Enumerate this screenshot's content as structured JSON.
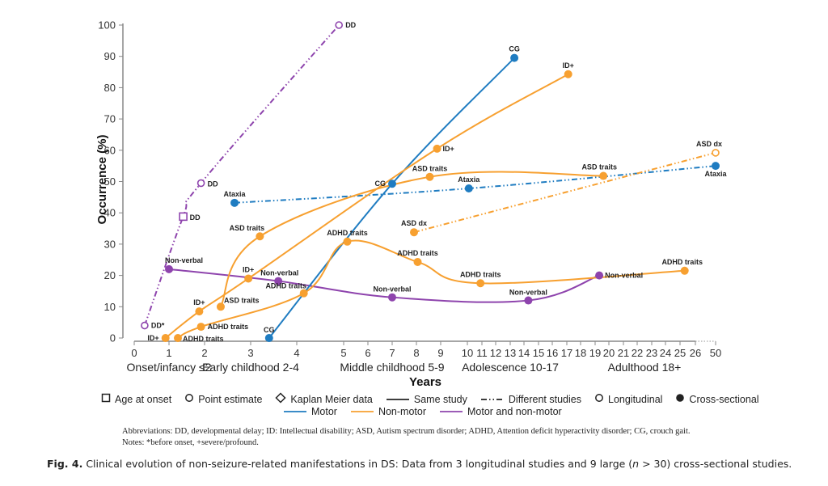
{
  "chart_data": {
    "type": "line",
    "title": "",
    "xlabel": "Years",
    "ylabel": "Occurrence (%)",
    "ylim": [
      0,
      100
    ],
    "y_ticks": [
      0,
      10,
      20,
      30,
      40,
      50,
      60,
      70,
      80,
      90,
      100
    ],
    "x_ticks": [
      0,
      1,
      2,
      3,
      4,
      5,
      6,
      7,
      8,
      9,
      10,
      11,
      12,
      13,
      14,
      15,
      16,
      17,
      18,
      19,
      20,
      21,
      22,
      23,
      24,
      25,
      26,
      50
    ],
    "x_scale": "piecewise (compressed after 10, break 26 to 50)",
    "periods": [
      {
        "label": "Onset/infancy ≤2",
        "center": 1
      },
      {
        "label": "Early childhood 2-4",
        "center": 3
      },
      {
        "label": "Middle childhood 5-9",
        "center": 7
      },
      {
        "label": "Adolescence 10-17",
        "center": 13
      },
      {
        "label": "Adulthood 18+",
        "center": 22.5
      }
    ],
    "grid": false,
    "legend_position": "bottom",
    "series": [
      {
        "name": "DD",
        "category": "Motor and non-motor",
        "color": "#8e44ad",
        "style": "different-studies",
        "study": "longitudinal",
        "points": [
          {
            "x": 0.3,
            "y": 4,
            "label": "DD*",
            "marker": "circle-open"
          },
          {
            "x": 1.4,
            "y": 38.8,
            "label": "DD",
            "marker": "square-open"
          },
          {
            "x": 1.9,
            "y": 49.5,
            "label": "DD",
            "marker": "circle-open"
          },
          {
            "x": 4.9,
            "y": 100,
            "label": "DD",
            "marker": "circle-open"
          }
        ]
      },
      {
        "name": "Non-verbal",
        "category": "Motor and non-motor",
        "color": "#8e44ad",
        "style": "same-study",
        "study": "cross-sectional",
        "points": [
          {
            "x": 1.0,
            "y": 22,
            "label": "Non-verbal",
            "marker": "circle-filled"
          },
          {
            "x": 3.6,
            "y": 18.2,
            "label": "Non-verbal",
            "marker": "circle-filled"
          },
          {
            "x": 7.0,
            "y": 13,
            "label": "Non-verbal",
            "marker": "circle-filled"
          },
          {
            "x": 14.3,
            "y": 12,
            "label": "Non-verbal",
            "marker": "circle-filled"
          },
          {
            "x": 19.3,
            "y": 20,
            "label": "Non-verbal",
            "marker": "circle-filled"
          }
        ]
      },
      {
        "name": "Ataxia",
        "category": "Motor",
        "color": "#1f7cc1",
        "style": "different-studies",
        "study": "cross-sectional",
        "points": [
          {
            "x": 2.65,
            "y": 43.2,
            "label": "Ataxia",
            "marker": "circle-filled"
          },
          {
            "x": 10.1,
            "y": 47.8,
            "label": "Ataxia",
            "marker": "circle-filled"
          },
          {
            "x": 50,
            "y": 55,
            "label": "Ataxia",
            "marker": "circle-filled"
          }
        ]
      },
      {
        "name": "CG",
        "category": "Motor",
        "color": "#1f7cc1",
        "style": "same-study",
        "study": "cross-sectional",
        "points": [
          {
            "x": 3.4,
            "y": 0,
            "label": "CG",
            "marker": "circle-filled"
          },
          {
            "x": 7.0,
            "y": 49.3,
            "label": "CG",
            "marker": "circle-filled"
          },
          {
            "x": 13.3,
            "y": 89.5,
            "label": "CG",
            "marker": "circle-filled"
          }
        ]
      },
      {
        "name": "ID+",
        "category": "Non-motor",
        "color": "#f7a030",
        "style": "same-study",
        "study": "cross-sectional",
        "points": [
          {
            "x": 0.9,
            "y": 0,
            "label": "ID+",
            "marker": "circle-filled"
          },
          {
            "x": 1.85,
            "y": 8.5,
            "label": "ID+",
            "marker": "circle-filled"
          },
          {
            "x": 2.95,
            "y": 19,
            "label": "ID+",
            "marker": "circle-filled"
          },
          {
            "x": 8.85,
            "y": 60.5,
            "label": "ID+",
            "marker": "circle-filled"
          },
          {
            "x": 17.1,
            "y": 84.3,
            "label": "ID+",
            "marker": "circle-filled"
          }
        ]
      },
      {
        "name": "ASD traits",
        "category": "Non-motor",
        "color": "#f7a030",
        "style": "same-study",
        "study": "cross-sectional",
        "points": [
          {
            "x": 2.35,
            "y": 10,
            "label": "ASD traits",
            "marker": "circle-filled"
          },
          {
            "x": 3.2,
            "y": 32.5,
            "label": "ASD traits",
            "marker": "circle-filled"
          },
          {
            "x": 8.55,
            "y": 51.5,
            "label": "ASD traits",
            "marker": "circle-filled"
          },
          {
            "x": 19.6,
            "y": 51.8,
            "label": "ASD traits",
            "marker": "circle-filled"
          }
        ]
      },
      {
        "name": "ADHD traits",
        "category": "Non-motor",
        "color": "#f7a030",
        "style": "same-study",
        "study": "cross-sectional",
        "points": [
          {
            "x": 1.25,
            "y": 0,
            "label": "ADHD traits",
            "marker": "circle-filled"
          },
          {
            "x": 1.9,
            "y": 3.6,
            "label": "ADHD traits",
            "marker": "circle-filled"
          },
          {
            "x": 4.15,
            "y": 14.3,
            "label": "ADHD traits",
            "marker": "circle-filled"
          },
          {
            "x": 5.15,
            "y": 30.8,
            "label": "ADHD traits",
            "marker": "circle-filled"
          },
          {
            "x": 8.05,
            "y": 24.3,
            "label": "ADHD traits",
            "marker": "circle-filled"
          },
          {
            "x": 10.9,
            "y": 17.5,
            "label": "ADHD traits",
            "marker": "circle-filled"
          },
          {
            "x": 25.3,
            "y": 21.5,
            "label": "ADHD traits",
            "marker": "circle-filled"
          }
        ]
      },
      {
        "name": "ASD dx",
        "category": "Non-motor",
        "color": "#f7a030",
        "style": "different-studies",
        "study": "mixed",
        "points": [
          {
            "x": 7.9,
            "y": 33.8,
            "label": "ASD dx",
            "marker": "circle-filled"
          },
          {
            "x": 50,
            "y": 59.2,
            "label": "ASD dx",
            "marker": "circle-open"
          }
        ]
      }
    ]
  },
  "legend": {
    "row1": [
      {
        "symbol": "square-open",
        "label": "Age at onset"
      },
      {
        "symbol": "circle-open",
        "label": "Point estimate"
      },
      {
        "symbol": "diamond-open",
        "label": "Kaplan Meier data"
      },
      {
        "symbol": "line-solid",
        "label": "Same study"
      },
      {
        "symbol": "line-dashdot",
        "label": "Different studies"
      },
      {
        "symbol": "circle-open",
        "label": "Longitudinal"
      },
      {
        "symbol": "circle-filled",
        "label": "Cross-sectional"
      }
    ],
    "row2": [
      {
        "symbol": "line-motor",
        "label": "Motor",
        "color": "#1f7cc1"
      },
      {
        "symbol": "line-nonmotor",
        "label": "Non-motor",
        "color": "#f7a030"
      },
      {
        "symbol": "line-both",
        "label": "Motor and non-motor",
        "color": "#8e44ad"
      }
    ]
  },
  "notes": {
    "abbreviations": "Abbreviations: DD, developmental delay; ID: Intellectual disability; ASD, Autism spectrum disorder; ADHD, Attention deficit hyperactivity disorder; CG, crouch gait.",
    "notes": "Notes: *before onset, +severe/profound."
  },
  "caption": {
    "fig": "Fig. 4.",
    "text_before": "Clinical evolution of non-seizure-related manifestations in DS: Data from 3 longitudinal studies and 9 large (",
    "n": "n",
    "text_after": " > 30) cross-sectional studies."
  }
}
